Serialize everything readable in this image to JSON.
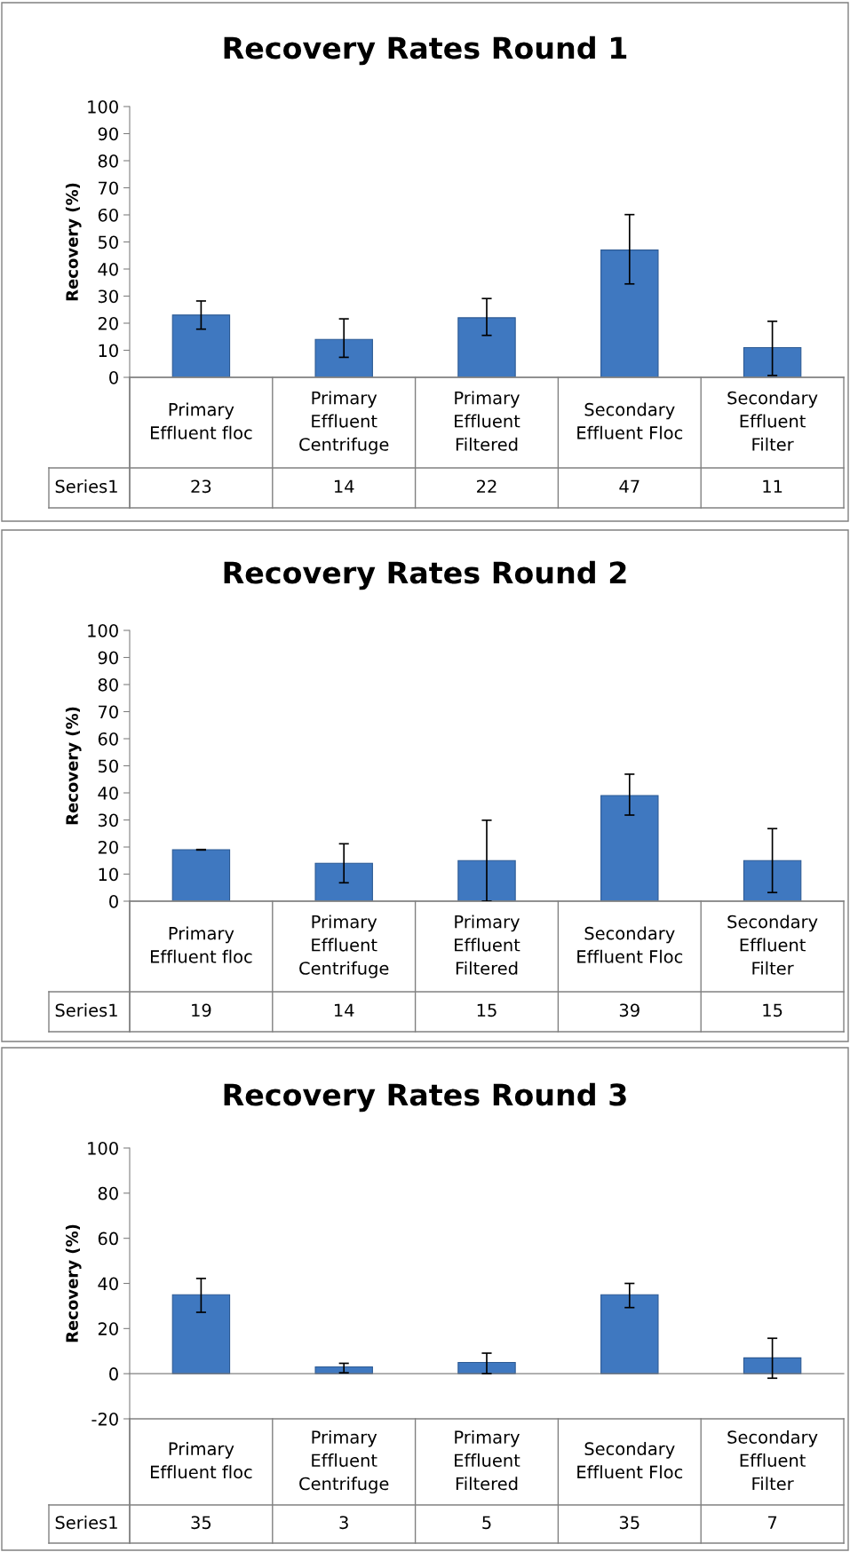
{
  "chart_data": [
    {
      "type": "bar",
      "title": "Recovery Rates Round 1",
      "ylabel": "Recovery (%)",
      "categories": [
        "Primary Effluent floc",
        "Primary Effluent Centrifuge",
        "Primary Effluent Filtered",
        "Secondary Effluent Floc",
        "Secondary Effluent Filter"
      ],
      "series": [
        {
          "name": "Series1",
          "color": "#3f78c0",
          "values": [
            23,
            14,
            22,
            47,
            11
          ],
          "errors": [
            [
              17.8,
              28.2
            ],
            [
              7.4,
              21.6
            ],
            [
              15.5,
              29.1
            ],
            [
              34.5,
              60.1
            ],
            [
              0.7,
              20.7
            ]
          ]
        }
      ],
      "ylim": [
        0,
        100
      ],
      "yticks": [
        0,
        10,
        20,
        30,
        40,
        50,
        60,
        70,
        80,
        90,
        100
      ],
      "data_labels": true
    },
    {
      "type": "bar",
      "title": "Recovery Rates Round 2",
      "ylabel": "Recovery (%)",
      "categories": [
        "Primary Effluent floc",
        "Primary Effluent Centrifuge",
        "Primary Effluent Filtered",
        "Secondary Effluent Floc",
        "Secondary Effluent Filter"
      ],
      "series": [
        {
          "name": "Series1",
          "color": "#3f78c0",
          "values": [
            19,
            14,
            15,
            39,
            15
          ],
          "errors": [
            [
              18.9,
              19.1
            ],
            [
              6.8,
              21.2
            ],
            [
              0,
              29.9
            ],
            [
              31.8,
              46.9
            ],
            [
              3.2,
              26.8
            ]
          ]
        }
      ],
      "ylim": [
        0,
        100
      ],
      "yticks": [
        0,
        10,
        20,
        30,
        40,
        50,
        60,
        70,
        80,
        90,
        100
      ],
      "data_labels": true
    },
    {
      "type": "bar",
      "title": "Recovery Rates Round 3",
      "ylabel": "Recovery (%)",
      "categories": [
        "Primary Effluent floc",
        "Primary Effluent Centrifuge",
        "Primary Effluent Filtered",
        "Secondary Effluent Floc",
        "Secondary Effluent Filter"
      ],
      "series": [
        {
          "name": "Series1",
          "color": "#3f78c0",
          "values": [
            35,
            3,
            5,
            35,
            7
          ],
          "errors": [
            [
              27.2,
              42.2
            ],
            [
              0.4,
              4.6
            ],
            [
              0,
              9.1
            ],
            [
              29.3,
              40
            ],
            [
              -2,
              15.7
            ]
          ]
        }
      ],
      "ylim": [
        -20,
        100
      ],
      "yticks": [
        -20,
        0,
        20,
        40,
        60,
        80,
        100
      ],
      "data_labels": true
    }
  ]
}
